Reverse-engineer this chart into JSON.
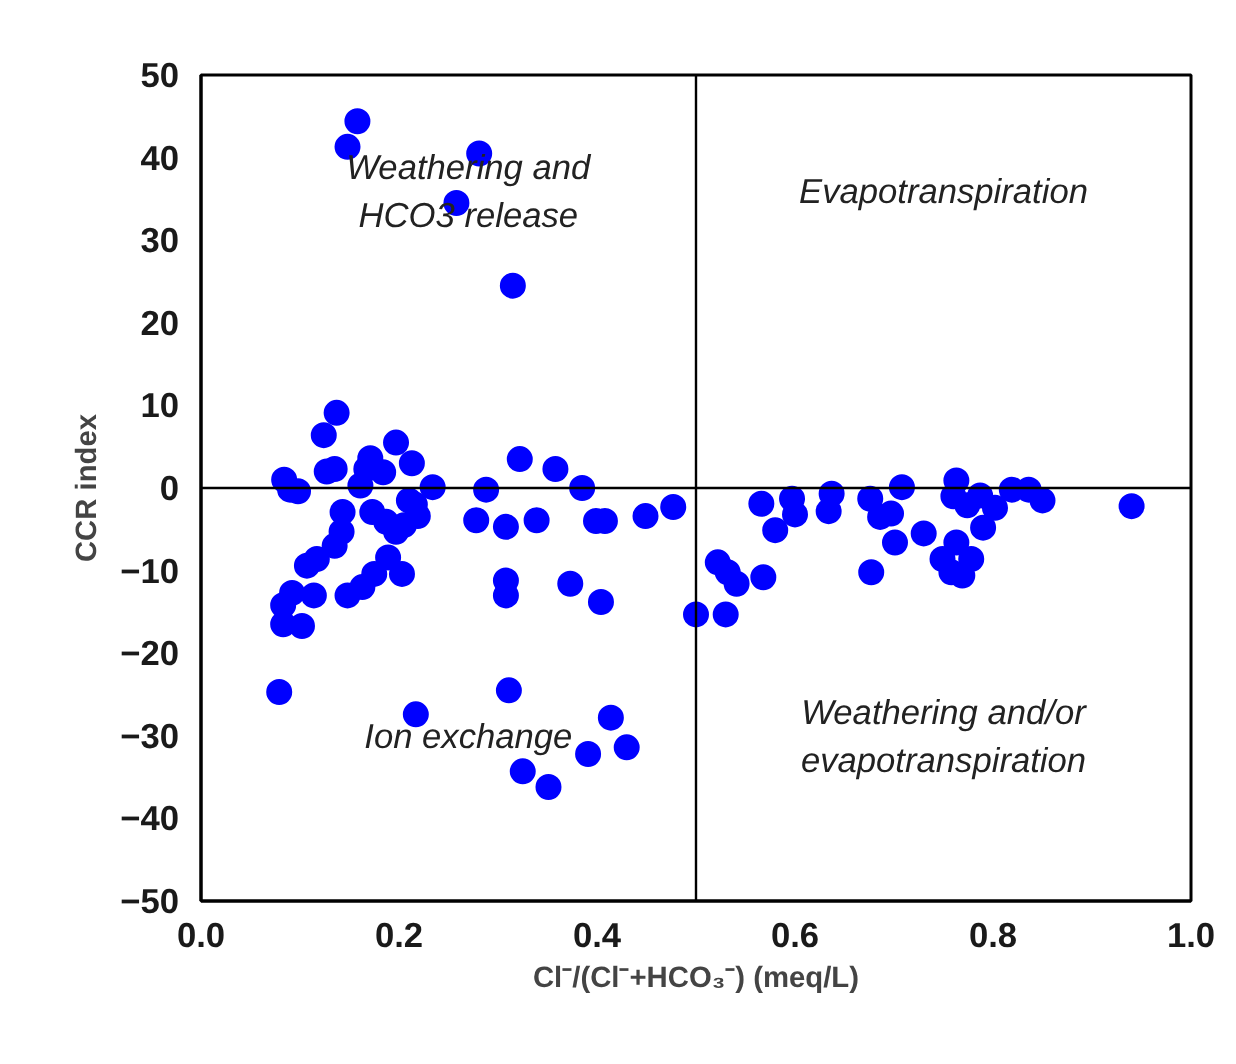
{
  "chart_data": {
    "type": "scatter",
    "xlabel": "Cl⁻/(Cl⁻+HCO₃⁻) (meq/L)",
    "ylabel": "CCR index",
    "xlim": [
      0.0,
      1.0
    ],
    "xticks": [
      {
        "value": 0.0,
        "label": "0.0"
      },
      {
        "value": 0.2,
        "label": "0.2"
      },
      {
        "value": 0.4,
        "label": "0.4"
      },
      {
        "value": 0.6,
        "label": "0.6"
      },
      {
        "value": 0.8,
        "label": "0.8"
      },
      {
        "value": 1.0,
        "label": "1.0"
      }
    ],
    "ylim": [
      -50,
      50
    ],
    "yticks": [
      -50,
      -40,
      -30,
      -20,
      -10,
      0,
      10,
      20,
      30,
      40,
      50
    ],
    "grid": false,
    "marker": "circle",
    "ref_lines": [
      {
        "axis": "x",
        "value": 0.5,
        "color": "#000000"
      },
      {
        "axis": "y",
        "value": 0,
        "color": "#000000"
      }
    ],
    "annotations": [
      "Weathering and\nHCO3 release",
      "Evapotranspiration",
      "Ion exchange",
      "Weathering and/or\nevapotranspiration"
    ],
    "series": [
      {
        "color": "#0000ff",
        "x": [
          0.158,
          0.148,
          0.281,
          0.258,
          0.315,
          0.137,
          0.124,
          0.197,
          0.213,
          0.171,
          0.322,
          0.358,
          0.127,
          0.135,
          0.184,
          0.167,
          0.084,
          0.385,
          0.288,
          0.234,
          0.161,
          0.098,
          0.09,
          0.143,
          0.142,
          0.135,
          0.117,
          0.107,
          0.173,
          0.187,
          0.197,
          0.205,
          0.21,
          0.216,
          0.219,
          0.278,
          0.308,
          0.339,
          0.399,
          0.408,
          0.449,
          0.477,
          0.189,
          0.175,
          0.203,
          0.163,
          0.148,
          0.114,
          0.092,
          0.083,
          0.083,
          0.102,
          0.308,
          0.308,
          0.373,
          0.404,
          0.5,
          0.079,
          0.311,
          0.217,
          0.414,
          0.391,
          0.43,
          0.325,
          0.351,
          0.566,
          0.597,
          0.6,
          0.58,
          0.637,
          0.634,
          0.676,
          0.686,
          0.697,
          0.708,
          0.701,
          0.73,
          0.763,
          0.76,
          0.787,
          0.774,
          0.802,
          0.819,
          0.836,
          0.85,
          0.79,
          0.763,
          0.749,
          0.778,
          0.758,
          0.769,
          0.677,
          0.94,
          0.522,
          0.532,
          0.541,
          0.568,
          0.53
        ],
        "values": [
          44.4,
          41.3,
          40.5,
          34.5,
          24.5,
          9.1,
          6.4,
          5.5,
          3.0,
          3.6,
          3.5,
          2.3,
          2.0,
          2.3,
          1.9,
          2.3,
          1.0,
          0,
          -0.2,
          0.1,
          0.3,
          -0.4,
          -0.2,
          -2.9,
          -5.3,
          -7.0,
          -8.6,
          -9.4,
          -2.9,
          -4.1,
          -5.3,
          -4.5,
          -1.5,
          -2.0,
          -3.4,
          -3.9,
          -4.7,
          -3.9,
          -4.0,
          -4.0,
          -3.4,
          -2.3,
          -8.4,
          -10.4,
          -10.4,
          -12.0,
          -13.0,
          -13.0,
          -12.7,
          -14.2,
          -16.5,
          -16.7,
          -11.2,
          -13.0,
          -11.6,
          -13.8,
          -15.3,
          -24.7,
          -24.5,
          -27.4,
          -27.8,
          -32.2,
          -31.4,
          -34.3,
          -36.2,
          -1.9,
          -1.3,
          -3.2,
          -5.1,
          -0.7,
          -2.8,
          -1.3,
          -3.5,
          -3.1,
          0.1,
          -6.6,
          -5.5,
          0.9,
          -1.0,
          -0.9,
          -2.1,
          -2.4,
          -0.2,
          -0.2,
          -1.5,
          -4.8,
          -6.6,
          -8.6,
          -8.6,
          -10.2,
          -10.6,
          -10.2,
          -2.2,
          -9.0,
          -10.2,
          -11.6,
          -10.8,
          -15.3
        ]
      }
    ]
  }
}
